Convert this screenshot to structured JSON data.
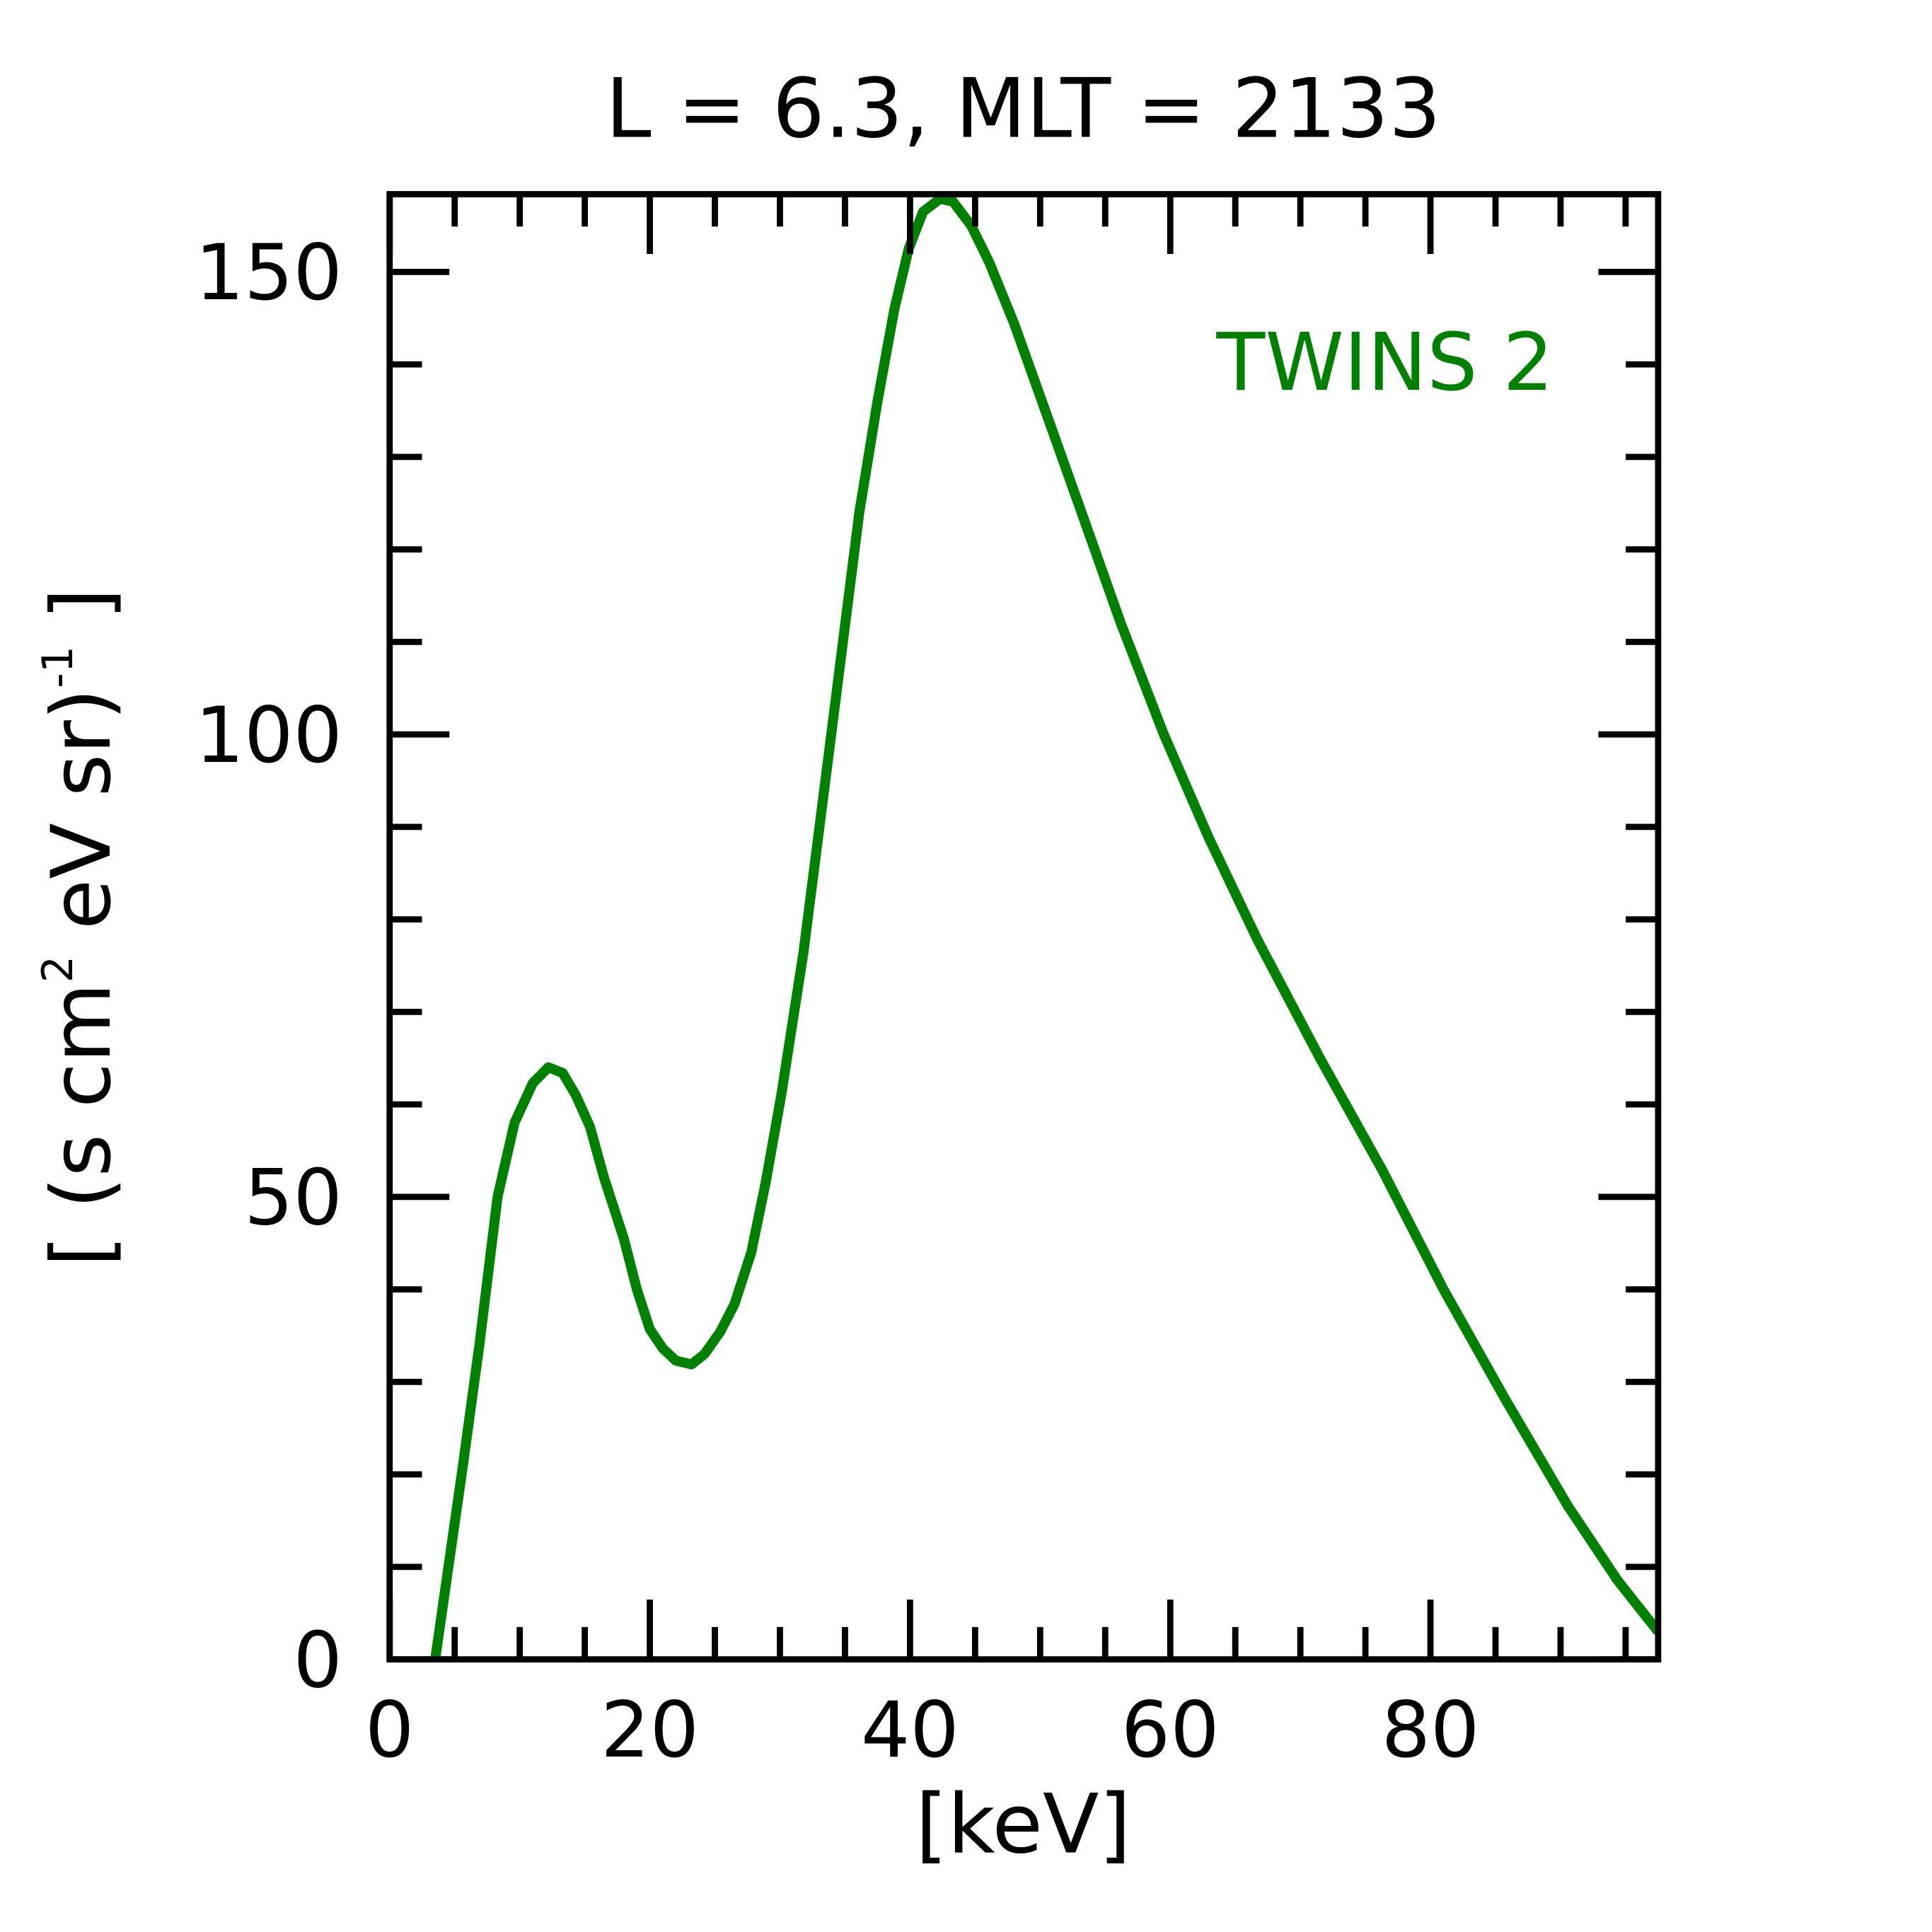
{
  "chart_data": {
    "type": "line",
    "title": "L =  6.3, MLT = 2133",
    "xlabel": "[keV]",
    "ylabel": "[ (s cm",
    "ylabel_sup1": "2",
    "ylabel_mid": " eV sr)",
    "ylabel_sup2": "-1",
    "ylabel_end": " ]",
    "xlim": [
      0,
      97.5
    ],
    "ylim": [
      0,
      158.4
    ],
    "xticks": [
      0,
      20,
      40,
      60,
      80
    ],
    "xtick_labels": [
      "0",
      "20",
      "40",
      "60",
      "80"
    ],
    "yticks": [
      0,
      50,
      100,
      150
    ],
    "ytick_labels": [
      "0",
      "50",
      "100",
      "150"
    ],
    "x_minor_step": 5,
    "y_minor_step": 10,
    "grid": false,
    "legend": {
      "text": "TWINS 2",
      "placement": "top-right",
      "color": "#008000"
    },
    "series": [
      {
        "name": "TWINS 2",
        "color": "#008000",
        "x": [
          3.5,
          4.5,
          5.6,
          6.9,
          8.3,
          9.6,
          11,
          12.2,
          13.3,
          14.3,
          15.4,
          16.5,
          18,
          19,
          20,
          21,
          22,
          23.2,
          24.2,
          25.4,
          26.5,
          27.8,
          28.9,
          30.1,
          31.8,
          33.7,
          36.1,
          37.5,
          38.8,
          39.9,
          41,
          42.3,
          43.3,
          44.7,
          46.1,
          48,
          50.4,
          53.3,
          56.2,
          59.5,
          62.9,
          66.7,
          71.5,
          76.3,
          81,
          85.8,
          90.6,
          94.4,
          97.5
        ],
        "y": [
          0,
          9.8,
          20.6,
          34,
          50,
          58,
          62.3,
          64,
          63.4,
          61,
          57.6,
          52,
          45.5,
          40,
          35.7,
          33.6,
          32.3,
          31.9,
          33,
          35.4,
          38.4,
          44,
          51.5,
          61,
          76.4,
          97.3,
          124,
          136,
          146,
          152.5,
          156.5,
          157.9,
          157.6,
          155,
          151,
          144.4,
          135,
          123.5,
          112,
          100,
          89,
          77.8,
          65,
          52.9,
          40,
          28,
          16.5,
          8.5,
          3
        ]
      }
    ]
  }
}
